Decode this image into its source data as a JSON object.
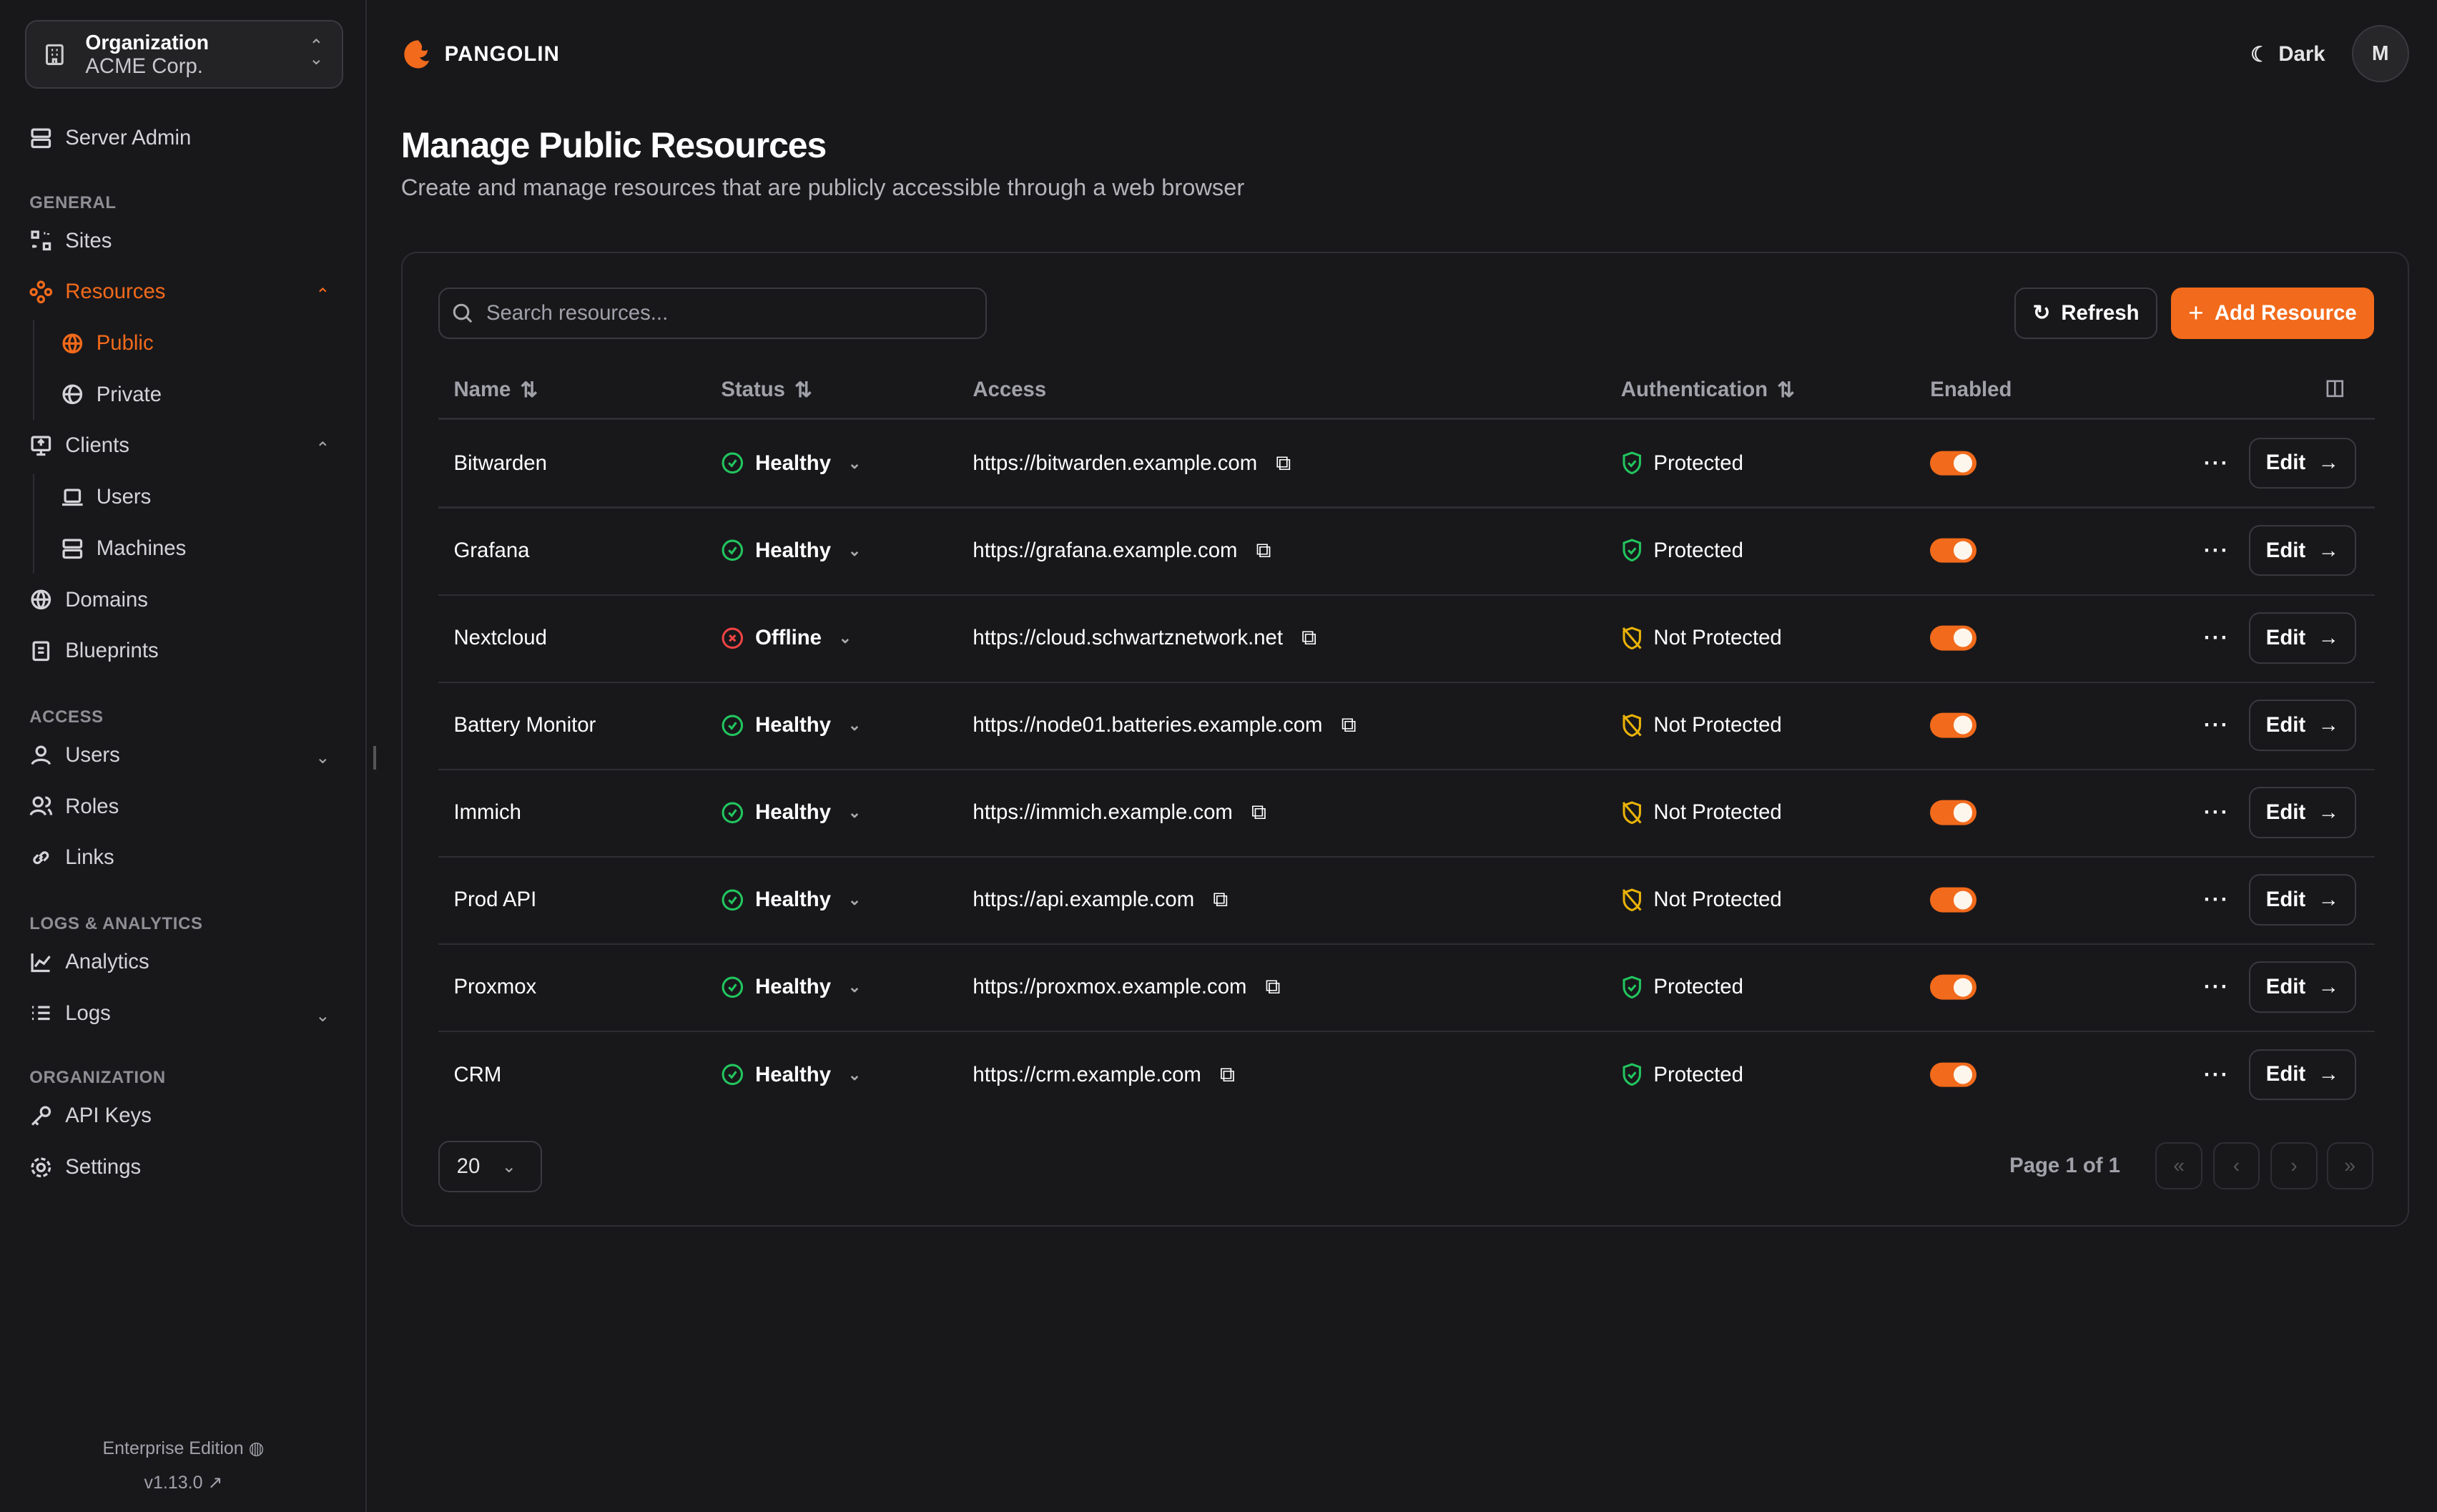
{
  "org": {
    "label": "Organization",
    "name": "ACME Corp."
  },
  "sidebar": {
    "server_admin": "Server Admin",
    "sections": {
      "general": "GENERAL",
      "access": "ACCESS",
      "logs": "LOGS & ANALYTICS",
      "organization": "ORGANIZATION"
    },
    "items": {
      "sites": "Sites",
      "resources": "Resources",
      "public": "Public",
      "private": "Private",
      "clients": "Clients",
      "users_client": "Users",
      "machines": "Machines",
      "domains": "Domains",
      "blueprints": "Blueprints",
      "users": "Users",
      "roles": "Roles",
      "links": "Links",
      "analytics": "Analytics",
      "logs": "Logs",
      "api_keys": "API Keys",
      "settings": "Settings"
    },
    "edition": "Enterprise Edition",
    "version": "v1.13.0"
  },
  "header": {
    "brand": "PANGOLIN",
    "theme": "Dark",
    "avatar": "M"
  },
  "page": {
    "title": "Manage Public Resources",
    "subtitle": "Create and manage resources that are publicly accessible through a web browser"
  },
  "toolbar": {
    "search_placeholder": "Search resources...",
    "refresh": "Refresh",
    "add": "Add Resource"
  },
  "table": {
    "columns": [
      "Name",
      "Status",
      "Access",
      "Authentication",
      "Enabled"
    ],
    "edit_label": "Edit",
    "rows": [
      {
        "name": "Bitwarden",
        "status": "Healthy",
        "access": "https://bitwarden.example.com",
        "auth": "Protected",
        "enabled": true
      },
      {
        "name": "Grafana",
        "status": "Healthy",
        "access": "https://grafana.example.com",
        "auth": "Protected",
        "enabled": true
      },
      {
        "name": "Nextcloud",
        "status": "Offline",
        "access": "https://cloud.schwartznetwork.net",
        "auth": "Not Protected",
        "enabled": true
      },
      {
        "name": "Battery Monitor",
        "status": "Healthy",
        "access": "https://node01.batteries.example.com",
        "auth": "Not Protected",
        "enabled": true
      },
      {
        "name": "Immich",
        "status": "Healthy",
        "access": "https://immich.example.com",
        "auth": "Not Protected",
        "enabled": true
      },
      {
        "name": "Prod API",
        "status": "Healthy",
        "access": "https://api.example.com",
        "auth": "Not Protected",
        "enabled": true
      },
      {
        "name": "Proxmox",
        "status": "Healthy",
        "access": "https://proxmox.example.com",
        "auth": "Protected",
        "enabled": true
      },
      {
        "name": "CRM",
        "status": "Healthy",
        "access": "https://crm.example.com",
        "auth": "Protected",
        "enabled": true
      }
    ]
  },
  "pagination": {
    "page_size": "20",
    "page_text": "Page 1 of 1"
  },
  "colors": {
    "accent": "#f26a1b",
    "healthy": "#22c55e",
    "offline": "#ef4444",
    "warning": "#eab308",
    "background": "#18181b"
  }
}
